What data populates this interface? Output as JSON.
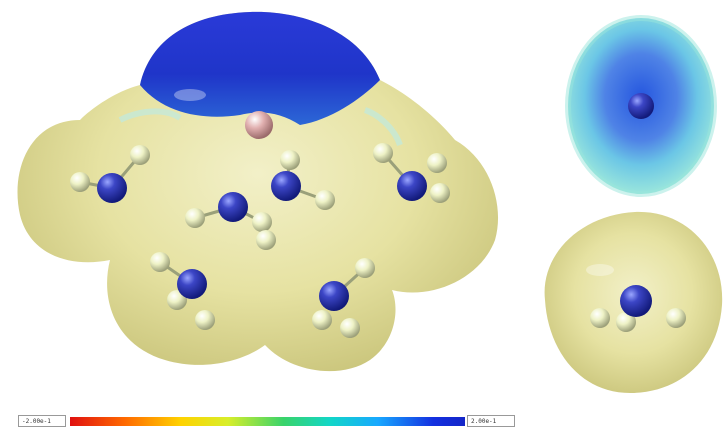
{
  "scene": {
    "description_free": true,
    "colors": {
      "surface_neutral": "#e6e4a8",
      "surface_positive": "#1b3ad0",
      "surface_mid": "#8fe2e6",
      "nitrogen": "#2a32b0",
      "hydrogen": "#eef2c6",
      "ion": "#d7a0a0"
    }
  },
  "scale": {
    "min_label": "-2.00e-1",
    "max_label": "2.00e-1"
  }
}
